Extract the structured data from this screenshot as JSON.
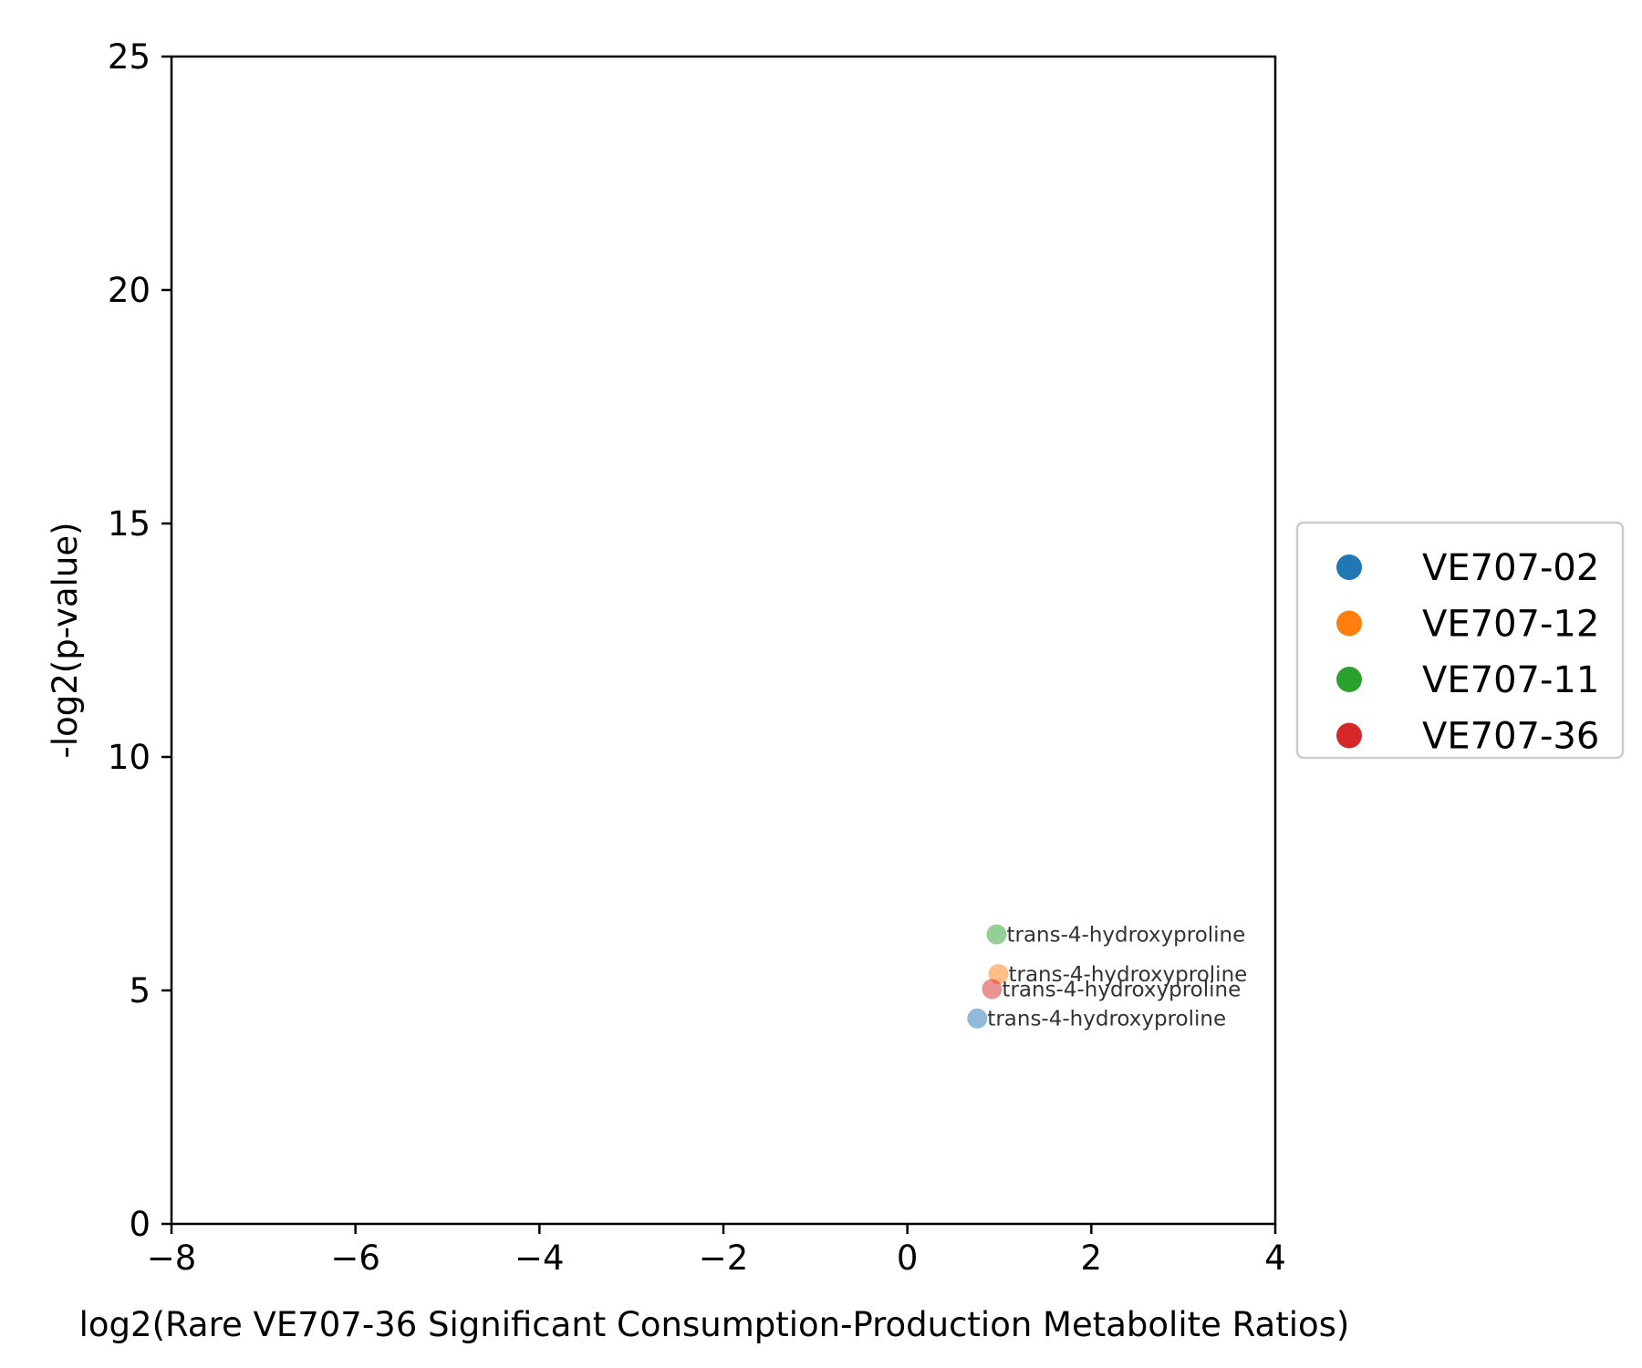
{
  "chart_data": {
    "type": "scatter",
    "title": "",
    "xlabel": "log2(Rare VE707-36 Significant Consumption-Production Metabolite Ratios)",
    "ylabel": "-log2(p-value)",
    "xlim": [
      -8,
      4
    ],
    "ylim": [
      0,
      25
    ],
    "x_ticks": [
      -8,
      -6,
      -4,
      -2,
      0,
      2,
      4
    ],
    "x_tick_labels": [
      "−8",
      "−6",
      "−4",
      "−2",
      "0",
      "2",
      "4"
    ],
    "y_ticks": [
      0,
      5,
      10,
      15,
      20,
      25
    ],
    "y_tick_labels": [
      "0",
      "5",
      "10",
      "15",
      "20",
      "25"
    ],
    "grid": false,
    "legend_position": "right",
    "series": [
      {
        "name": "VE707-02",
        "color": "#1f77b4",
        "points": [
          {
            "x": 0.76,
            "y": 4.4,
            "label": "trans-4-hydroxyproline"
          }
        ]
      },
      {
        "name": "VE707-12",
        "color": "#ff7f0e",
        "points": [
          {
            "x": 0.99,
            "y": 5.35,
            "label": "trans-4-hydroxyproline"
          }
        ]
      },
      {
        "name": "VE707-11",
        "color": "#2ca02c",
        "points": [
          {
            "x": 0.97,
            "y": 6.2,
            "label": "trans-4-hydroxyproline"
          }
        ]
      },
      {
        "name": "VE707-36",
        "color": "#d62728",
        "points": [
          {
            "x": 0.92,
            "y": 5.03,
            "label": "trans-4-hydroxyproline"
          }
        ]
      }
    ]
  }
}
